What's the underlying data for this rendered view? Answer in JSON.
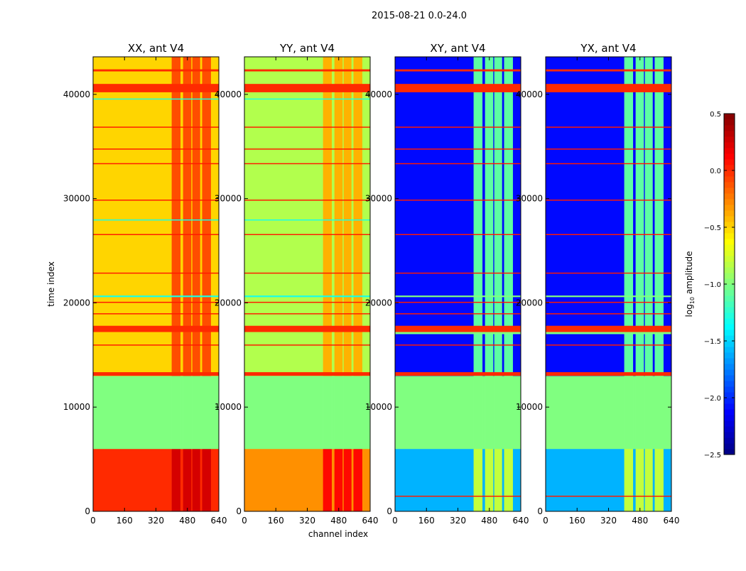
{
  "chart_data": {
    "type": "heatmap",
    "title": "2015-08-21 0.0-24.0",
    "xlabel": "channel index",
    "ylabel": "time index",
    "xlim": [
      0,
      640
    ],
    "ylim": [
      0,
      43600
    ],
    "xticks": [
      0,
      160,
      320,
      480,
      640
    ],
    "yticks": [
      0,
      10000,
      20000,
      30000,
      40000
    ],
    "colorbar": {
      "label": "log10 amplitude",
      "range": [
        -2.5,
        0.5
      ],
      "ticks": [
        "0.5",
        "0.0",
        "−0.5",
        "−1.0",
        "−1.5",
        "−2.0",
        "−2.5"
      ],
      "colormap": "jet"
    },
    "rfi_channel_stripes": [
      [
        400,
        445
      ],
      [
        458,
        500
      ],
      [
        505,
        545
      ],
      [
        555,
        600
      ]
    ],
    "panels": [
      {
        "title": "XX, ant V4",
        "segments": [
          {
            "t": [
              0,
              6000
            ],
            "base": 0.0,
            "rfi": 0.25
          },
          {
            "t": [
              6000,
              13000
            ],
            "base": -1.0,
            "rfi": -1.0
          },
          {
            "t": [
              13000,
              43600
            ],
            "base": -0.5,
            "rfi": -0.1
          }
        ],
        "lines": [
          {
            "t": [
              13000,
              13350
            ],
            "v": 0.0
          },
          {
            "t": [
              17200,
              17800
            ],
            "v": 0.0
          },
          {
            "t": [
              40200,
              41000
            ],
            "v": 0.0
          },
          {
            "t": [
              20550,
              20700
            ],
            "v": -1.3
          },
          {
            "t": [
              15900,
              16000
            ],
            "v": 0.05
          },
          {
            "t": [
              18900,
              19000
            ],
            "v": 0.05
          },
          {
            "t": [
              20000,
              20100
            ],
            "v": 0.05
          },
          {
            "t": [
              22800,
              22900
            ],
            "v": 0.05
          },
          {
            "t": [
              26500,
              26600
            ],
            "v": 0.05
          },
          {
            "t": [
              29800,
              29900
            ],
            "v": 0.05
          },
          {
            "t": [
              33300,
              33400
            ],
            "v": 0.05
          },
          {
            "t": [
              34700,
              34800
            ],
            "v": 0.05
          },
          {
            "t": [
              36800,
              36900
            ],
            "v": 0.05
          },
          {
            "t": [
              42200,
              42400
            ],
            "v": 0.0
          },
          {
            "t": [
              27900,
              28000
            ],
            "v": -1.3
          },
          {
            "t": [
              39500,
              39600
            ],
            "v": -1.3
          }
        ]
      },
      {
        "title": "YY, ant V4",
        "segments": [
          {
            "t": [
              0,
              6000
            ],
            "base": -0.3,
            "rfi": 0.1
          },
          {
            "t": [
              6000,
              13000
            ],
            "base": -1.0,
            "rfi": -1.0
          },
          {
            "t": [
              13000,
              43600
            ],
            "base": -0.85,
            "rfi": -0.4
          }
        ],
        "lines": [
          {
            "t": [
              13000,
              13350
            ],
            "v": 0.0
          },
          {
            "t": [
              17200,
              17800
            ],
            "v": 0.0
          },
          {
            "t": [
              40200,
              41000
            ],
            "v": 0.0
          },
          {
            "t": [
              20550,
              20700
            ],
            "v": -1.3
          },
          {
            "t": [
              15900,
              16000
            ],
            "v": 0.05
          },
          {
            "t": [
              18900,
              19000
            ],
            "v": 0.05
          },
          {
            "t": [
              20000,
              20100
            ],
            "v": 0.05
          },
          {
            "t": [
              22800,
              22900
            ],
            "v": 0.05
          },
          {
            "t": [
              26500,
              26600
            ],
            "v": 0.05
          },
          {
            "t": [
              29800,
              29900
            ],
            "v": 0.05
          },
          {
            "t": [
              33300,
              33400
            ],
            "v": 0.05
          },
          {
            "t": [
              34700,
              34800
            ],
            "v": 0.05
          },
          {
            "t": [
              36800,
              36900
            ],
            "v": 0.05
          },
          {
            "t": [
              42200,
              42400
            ],
            "v": 0.0
          },
          {
            "t": [
              27900,
              28000
            ],
            "v": -1.3
          },
          {
            "t": [
              39500,
              39600
            ],
            "v": -1.3
          }
        ]
      },
      {
        "title": "XY, ant V4",
        "segments": [
          {
            "t": [
              0,
              6000
            ],
            "base": -1.6,
            "rfi": -0.8
          },
          {
            "t": [
              6000,
              13000
            ],
            "base": -1.0,
            "rfi": -1.0
          },
          {
            "t": [
              13000,
              43600
            ],
            "base": -2.1,
            "rfi": -1.1
          }
        ],
        "lines": [
          {
            "t": [
              13000,
              13350
            ],
            "v": 0.0
          },
          {
            "t": [
              17200,
              17800
            ],
            "v": 0.0
          },
          {
            "t": [
              40200,
              41000
            ],
            "v": 0.0
          },
          {
            "t": [
              20550,
              20700
            ],
            "v": -1.0
          },
          {
            "t": [
              1400,
              1500
            ],
            "v": 0.05
          },
          {
            "t": [
              15900,
              16000
            ],
            "v": 0.05
          },
          {
            "t": [
              18900,
              19000
            ],
            "v": 0.05
          },
          {
            "t": [
              20000,
              20100
            ],
            "v": 0.05
          },
          {
            "t": [
              22800,
              22900
            ],
            "v": 0.05
          },
          {
            "t": [
              26500,
              26600
            ],
            "v": 0.05
          },
          {
            "t": [
              29800,
              29900
            ],
            "v": 0.05
          },
          {
            "t": [
              33300,
              33400
            ],
            "v": 0.05
          },
          {
            "t": [
              34700,
              34800
            ],
            "v": 0.05
          },
          {
            "t": [
              36800,
              36900
            ],
            "v": 0.05
          },
          {
            "t": [
              42200,
              42400
            ],
            "v": 0.0
          },
          {
            "t": [
              17000,
              17200
            ],
            "v": -1.0
          }
        ]
      },
      {
        "title": "YX, ant V4",
        "segments": [
          {
            "t": [
              0,
              6000
            ],
            "base": -1.6,
            "rfi": -0.8
          },
          {
            "t": [
              6000,
              13000
            ],
            "base": -1.0,
            "rfi": -1.0
          },
          {
            "t": [
              13000,
              43600
            ],
            "base": -2.1,
            "rfi": -1.1
          }
        ],
        "lines": [
          {
            "t": [
              13000,
              13350
            ],
            "v": 0.0
          },
          {
            "t": [
              17200,
              17800
            ],
            "v": 0.0
          },
          {
            "t": [
              40200,
              41000
            ],
            "v": 0.0
          },
          {
            "t": [
              20550,
              20700
            ],
            "v": -1.0
          },
          {
            "t": [
              1400,
              1500
            ],
            "v": 0.05
          },
          {
            "t": [
              15900,
              16000
            ],
            "v": 0.05
          },
          {
            "t": [
              18900,
              19000
            ],
            "v": 0.05
          },
          {
            "t": [
              20000,
              20100
            ],
            "v": 0.05
          },
          {
            "t": [
              22800,
              22900
            ],
            "v": 0.05
          },
          {
            "t": [
              26500,
              26600
            ],
            "v": 0.05
          },
          {
            "t": [
              29800,
              29900
            ],
            "v": 0.05
          },
          {
            "t": [
              33300,
              33400
            ],
            "v": 0.05
          },
          {
            "t": [
              34700,
              34800
            ],
            "v": 0.05
          },
          {
            "t": [
              36800,
              36900
            ],
            "v": 0.05
          },
          {
            "t": [
              42200,
              42400
            ],
            "v": 0.0
          },
          {
            "t": [
              17000,
              17200
            ],
            "v": -1.0
          }
        ]
      }
    ]
  }
}
